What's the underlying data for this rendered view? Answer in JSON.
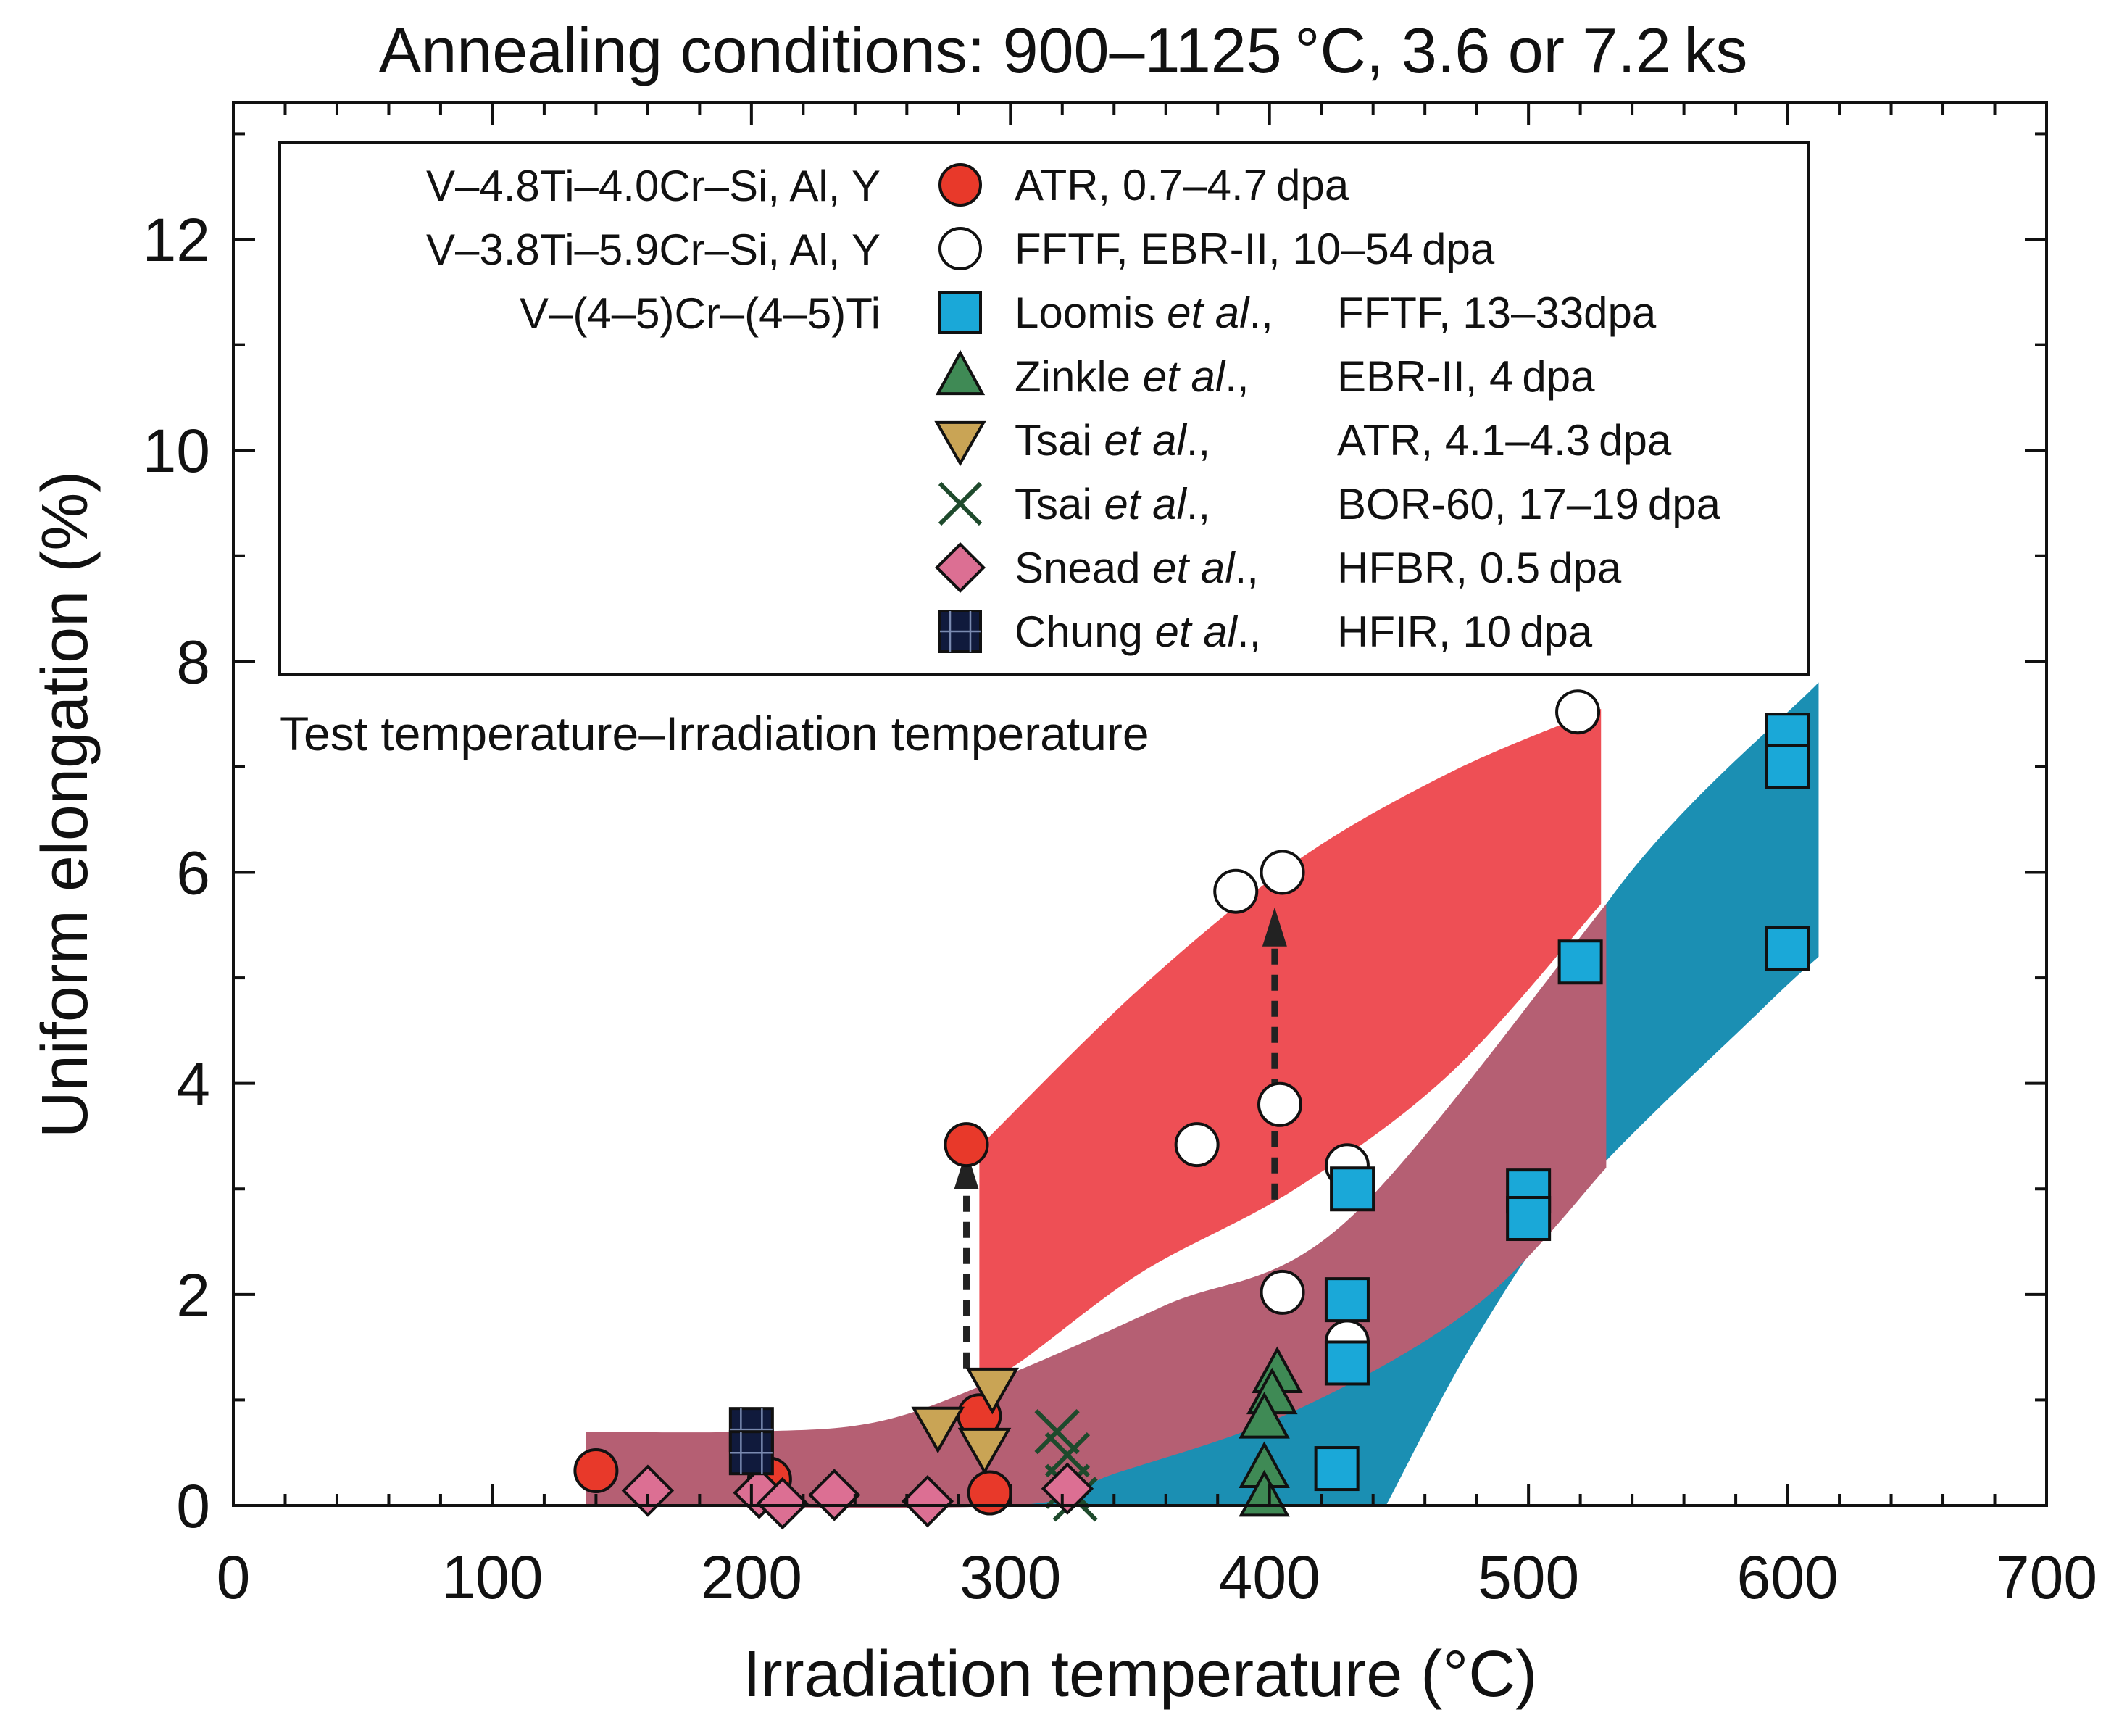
{
  "chart_data": {
    "type": "scatter",
    "title": "Annealing conditions: 900–1125 °C, 3.6 or 7.2 ks",
    "xlabel": "Irradiation temperature (°C)",
    "ylabel": "Uniform elongation (%)",
    "xlim": [
      0,
      700
    ],
    "ylim": [
      0,
      13.2
    ],
    "xticks": [
      0,
      100,
      200,
      300,
      400,
      500,
      600,
      700
    ],
    "yticks": [
      0,
      2,
      4,
      6,
      8,
      10,
      12
    ],
    "annotation": "Test temperature–Irradiation temperature",
    "legend": {
      "alloys": [
        "V–4.8Ti–4.0Cr–Si, Al, Y",
        "V–3.8Ti–5.9Cr–Si, Al, Y",
        "V–(4–5)Cr–(4–5)Ti"
      ],
      "entries": [
        {
          "key": "atr",
          "marker": "circle-filled",
          "color": "#e8392a",
          "author": "ATR, 0.7–4.7 dpa",
          "etal": "",
          "reactor": ""
        },
        {
          "key": "fftf",
          "marker": "circle-open",
          "color": "#ffffff",
          "author": "FFTF, EBR-II, 10–54 dpa",
          "etal": "",
          "reactor": ""
        },
        {
          "key": "loomis",
          "marker": "square",
          "color": "#1aa8d8",
          "author": "Loomis",
          "etal": "et al",
          "reactor": "FFTF, 13–33dpa"
        },
        {
          "key": "zinkle",
          "marker": "triangle-up",
          "color": "#3f8a55",
          "author": "Zinkle",
          "etal": "et al",
          "reactor": "EBR-II, 4 dpa"
        },
        {
          "key": "tsai_atr",
          "marker": "triangle-down",
          "color": "#c9a455",
          "author": "Tsai",
          "etal": "et al",
          "reactor": "ATR, 4.1–4.3 dpa"
        },
        {
          "key": "tsai_bor",
          "marker": "x",
          "color": "#1e4a2c",
          "author": "Tsai",
          "etal": "et al",
          "reactor": "BOR-60, 17–19 dpa"
        },
        {
          "key": "snead",
          "marker": "diamond",
          "color": "#dc6f93",
          "author": "Snead",
          "etal": "et al",
          "reactor": "HFBR, 0.5 dpa"
        },
        {
          "key": "chung",
          "marker": "square-dark",
          "color": "#101a3c",
          "author": "Chung",
          "etal": "et al",
          "reactor": "HFIR, 10 dpa"
        }
      ]
    },
    "bands": [
      {
        "name": "blue band",
        "color": "#1b8fb3",
        "upper": [
          [
            300,
            0.0
          ],
          [
            400,
            1.0
          ],
          [
            450,
            2.2
          ],
          [
            530,
            5.7
          ],
          [
            612,
            7.8
          ]
        ],
        "lower": [
          [
            612,
            5.2
          ],
          [
            590,
            4.7
          ],
          [
            520,
            3.0
          ],
          [
            480,
            1.6
          ],
          [
            445,
            0.0
          ]
        ]
      },
      {
        "name": "mauve band",
        "color": "#b55f73",
        "upper": [
          [
            136,
            0.7
          ],
          [
            200,
            0.7
          ],
          [
            250,
            0.8
          ],
          [
            300,
            1.25
          ],
          [
            360,
            1.9
          ],
          [
            430,
            2.7
          ],
          [
            530,
            5.7
          ]
        ],
        "lower": [
          [
            530,
            3.2
          ],
          [
            480,
            1.9
          ],
          [
            410,
            0.9
          ],
          [
            340,
            0.3
          ],
          [
            300,
            0.0
          ],
          [
            136,
            0.0
          ]
        ]
      },
      {
        "name": "red band",
        "color": "#ee4f55",
        "upper": [
          [
            288,
            3.4
          ],
          [
            350,
            4.9
          ],
          [
            410,
            6.1
          ],
          [
            470,
            6.95
          ],
          [
            528,
            7.55
          ]
        ],
        "lower": [
          [
            528,
            5.7
          ],
          [
            470,
            4.1
          ],
          [
            410,
            3.0
          ],
          [
            350,
            2.2
          ],
          [
            300,
            1.3
          ],
          [
            288,
            1.3
          ]
        ]
      }
    ],
    "arrows": [
      {
        "x": 283,
        "y_from": 1.3,
        "y_to": 3.3
      },
      {
        "x": 402,
        "y_from": 2.9,
        "y_to": 5.6
      }
    ],
    "series": [
      {
        "key": "atr",
        "name": "ATR, 0.7–4.7 dpa",
        "points": [
          [
            140,
            0.33
          ],
          [
            207,
            0.25
          ],
          [
            283,
            3.42
          ],
          [
            288,
            0.85
          ],
          [
            292,
            0.12
          ]
        ]
      },
      {
        "key": "fftf",
        "name": "FFTF, EBR-II, 10–54 dpa",
        "points": [
          [
            372,
            3.42
          ],
          [
            387,
            5.82
          ],
          [
            405,
            6.0
          ],
          [
            404,
            3.8
          ],
          [
            430,
            3.22
          ],
          [
            405,
            2.02
          ],
          [
            430,
            1.55
          ],
          [
            519,
            7.52
          ]
        ]
      },
      {
        "key": "loomis",
        "name": "Loomis et al., FFTF, 13–33dpa",
        "points": [
          [
            432,
            3.0
          ],
          [
            430,
            1.95
          ],
          [
            430,
            1.35
          ],
          [
            426,
            0.35
          ],
          [
            520,
            5.15
          ],
          [
            500,
            2.98
          ],
          [
            500,
            2.72
          ],
          [
            600,
            7.3
          ],
          [
            600,
            7.0
          ],
          [
            600,
            5.28
          ]
        ]
      },
      {
        "key": "zinkle",
        "name": "Zinkle et al., EBR-II, 4 dpa",
        "points": [
          [
            403,
            1.25
          ],
          [
            401,
            1.05
          ],
          [
            398,
            0.82
          ],
          [
            398,
            0.35
          ],
          [
            398,
            0.08
          ]
        ]
      },
      {
        "key": "tsai_atr",
        "name": "Tsai et al., ATR, 4.1–4.3 dpa",
        "points": [
          [
            293,
            1.12
          ],
          [
            272,
            0.75
          ],
          [
            290,
            0.55
          ]
        ]
      },
      {
        "key": "tsai_bor",
        "name": "Tsai et al., BOR-60, 17–19 dpa",
        "points": [
          [
            318,
            0.7
          ],
          [
            322,
            0.48
          ],
          [
            322,
            0.18
          ],
          [
            325,
            0.06
          ]
        ]
      },
      {
        "key": "snead",
        "name": "Snead et al., HFBR, 0.5 dpa",
        "points": [
          [
            160,
            0.14
          ],
          [
            203,
            0.12
          ],
          [
            212,
            0.02
          ],
          [
            232,
            0.1
          ],
          [
            268,
            0.04
          ],
          [
            322,
            0.16
          ]
        ]
      },
      {
        "key": "chung",
        "name": "Chung et al., HFIR, 10 dpa",
        "points": [
          [
            200,
            0.72
          ],
          [
            200,
            0.5
          ]
        ]
      }
    ]
  }
}
